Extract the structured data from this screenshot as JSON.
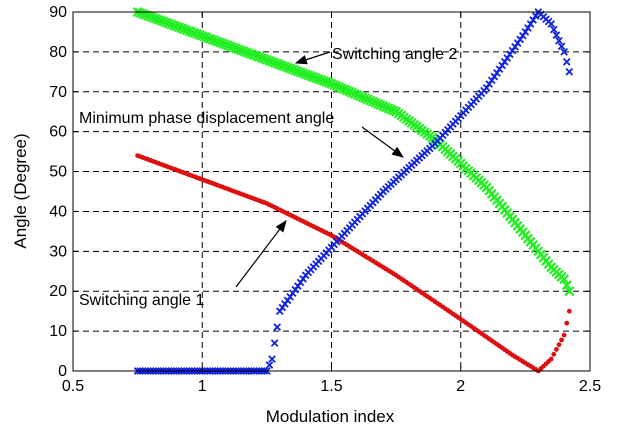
{
  "chart_data": {
    "type": "scatter",
    "title": "",
    "xlabel": "Modulation index",
    "ylabel": "Angle (Degree)",
    "xlim": [
      0.5,
      2.5
    ],
    "ylim": [
      0,
      90
    ],
    "xticks": [
      "0.5",
      "1",
      "1.5",
      "2",
      "2.5"
    ],
    "yticks": [
      "0",
      "10",
      "20",
      "30",
      "40",
      "50",
      "60",
      "70",
      "80",
      "90"
    ],
    "grid": true,
    "colors": {
      "green": "#22ee22",
      "red": "#dd1111",
      "blue": "#1122dd"
    },
    "series": [
      {
        "color": "green",
        "marker": "x",
        "x": [
          0.75,
          1.0,
          1.25,
          1.5,
          1.75,
          1.9,
          2.0,
          2.1,
          2.2,
          2.3,
          2.35,
          2.4,
          2.42
        ],
        "y": [
          90,
          84,
          78,
          72,
          65,
          58,
          52,
          46,
          38,
          30,
          26,
          23,
          20
        ]
      },
      {
        "color": "red",
        "marker": "dot",
        "x": [
          0.75,
          1.0,
          1.25,
          1.5,
          1.75,
          2.0,
          2.2,
          2.3,
          2.35,
          2.4,
          2.42
        ],
        "y": [
          54,
          48,
          42,
          34,
          24,
          13,
          4,
          0,
          3,
          9,
          15
        ]
      },
      {
        "color": "blue",
        "marker": "x",
        "x": [
          0.75,
          1.0,
          1.25,
          1.27,
          1.3,
          1.4,
          1.5,
          1.7,
          1.9,
          2.1,
          2.25,
          2.3,
          2.35,
          2.4,
          2.42
        ],
        "y": [
          0,
          0,
          0,
          3,
          15,
          24,
          31,
          45,
          57,
          71,
          85,
          90,
          87,
          80,
          75
        ]
      }
    ],
    "annotations": [
      {
        "text": "Switching angle 2",
        "x": 1.5,
        "y": 78
      },
      {
        "text": "Minimum phase displacement angle",
        "x": 1.5,
        "y": 64
      },
      {
        "text": "Switching angle 1",
        "x": 1.05,
        "y": 17
      }
    ]
  }
}
